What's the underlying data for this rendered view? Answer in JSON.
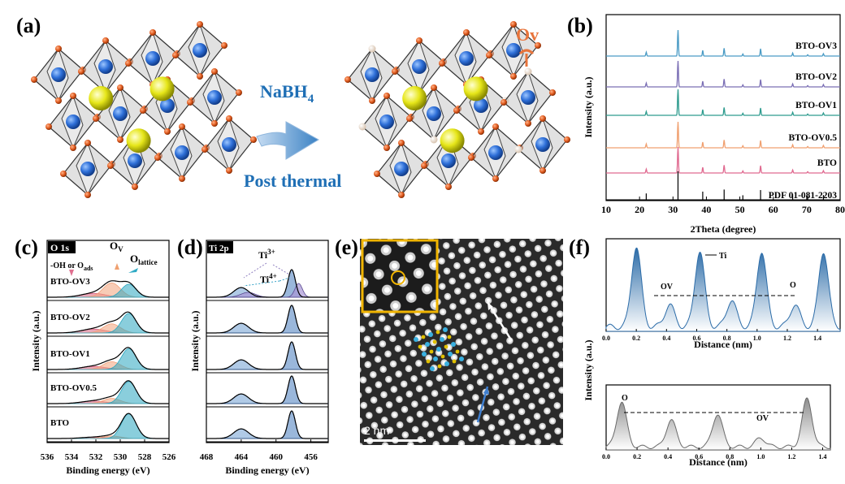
{
  "panel_labels": {
    "a": "(a)",
    "b": "(b)",
    "c": "(c)",
    "d": "(d)",
    "e": "(e)",
    "f": "(f)"
  },
  "panel_a": {
    "reagent": "NaBH",
    "reagent_sub": "4",
    "treatment": "Post thermal",
    "vacancy_label": "Ov",
    "colors": {
      "reagent": "#1f6fb5",
      "vacancy": "#e8743b",
      "oxygen": "#e05a1e",
      "titanium": "#2e6fd8",
      "barium": "#e6e619"
    }
  },
  "chart_data": [
    {
      "type": "line",
      "panel": "b",
      "title": "",
      "xlabel": "2Theta (degree)",
      "ylabel": "Intensity (a.u.)",
      "xlim": [
        10,
        80
      ],
      "xticks": [
        "10",
        "20",
        "30",
        "40",
        "50",
        "60",
        "70",
        "80"
      ],
      "peaks_2theta": [
        22.0,
        31.5,
        38.9,
        45.3,
        50.9,
        56.2,
        65.8,
        70.3,
        75.0
      ],
      "peak_rel_intensity": [
        0.15,
        1.0,
        0.22,
        0.3,
        0.08,
        0.28,
        0.12,
        0.05,
        0.09
      ],
      "series": [
        {
          "name": "BTO-OV3",
          "color": "#4a9bc5"
        },
        {
          "name": "BTO-OV2",
          "color": "#7b6fb5"
        },
        {
          "name": "BTO-OV1",
          "color": "#2f9c8f"
        },
        {
          "name": "BTO-OV0.5",
          "color": "#f0a070"
        },
        {
          "name": "BTO",
          "color": "#e06a90"
        },
        {
          "name": "PDF 01-081-2203",
          "color": "#000000"
        }
      ]
    },
    {
      "type": "line",
      "panel": "c",
      "tag": "O 1s",
      "xlabel": "Binding energy (eV)",
      "ylabel": "Intensity (a.u.)",
      "xlim": [
        536,
        526
      ],
      "xticks": [
        "536",
        "534",
        "532",
        "530",
        "528",
        "526"
      ],
      "annotations": {
        "ov": "O",
        "ov_sub": "V",
        "lattice": "O",
        "lattice_sub": "lattice",
        "oh": "-OH or O",
        "oh_sub": "ads"
      },
      "components_eV": {
        "ads": 532.2,
        "ov": 530.7,
        "lattice": 529.3
      },
      "series": [
        {
          "name": "BTO-OV3",
          "areas": [
            0.15,
            0.55,
            0.5
          ]
        },
        {
          "name": "BTO-OV2",
          "areas": [
            0.15,
            0.35,
            0.75
          ]
        },
        {
          "name": "BTO-OV1",
          "areas": [
            0.12,
            0.3,
            0.8
          ]
        },
        {
          "name": "BTO-OV0.5",
          "areas": [
            0.1,
            0.2,
            0.85
          ]
        },
        {
          "name": "BTO",
          "areas": [
            0.05,
            0.1,
            0.95
          ]
        }
      ]
    },
    {
      "type": "line",
      "panel": "d",
      "tag": "Ti 2p",
      "xlabel": "Binding energy (eV)",
      "ylabel": "Intensity (a.u.)",
      "xlim": [
        468,
        454
      ],
      "xticks": [
        "468",
        "464",
        "460",
        "456"
      ],
      "annotations": {
        "ti3": "Ti",
        "ti3_sup": "3+",
        "ti4": "Ti",
        "ti4_sup": "4+"
      },
      "peaks_eV": [
        464.0,
        458.2
      ]
    },
    {
      "type": "line",
      "panel": "f-top",
      "xlabel": "Distance (nm)",
      "xlim": [
        0.0,
        1.55
      ],
      "xticks": [
        "0.0",
        "0.2",
        "0.4",
        "0.6",
        "0.8",
        "1.0",
        "1.2",
        "1.4"
      ],
      "annotations": [
        "OV",
        "Ti",
        "O"
      ],
      "peaks_nm": [
        0.2,
        0.42,
        0.62,
        0.83,
        1.03,
        1.25,
        1.44
      ],
      "peak_heights": [
        0.9,
        0.25,
        0.85,
        0.3,
        0.85,
        0.25,
        0.85
      ]
    },
    {
      "type": "line",
      "panel": "f-bottom",
      "xlabel": "Distance (nm)",
      "xlim": [
        0.0,
        1.45
      ],
      "xticks": [
        "0.0",
        "0.2",
        "0.4",
        "0.6",
        "0.8",
        "1.0",
        "1.2",
        "1.4"
      ],
      "annotations": [
        "O",
        "OV"
      ],
      "peaks_nm": [
        0.1,
        0.42,
        0.72,
        1.0,
        1.3
      ],
      "peak_heights": [
        0.75,
        0.45,
        0.55,
        0.15,
        0.8
      ]
    }
  ],
  "panel_e": {
    "scale_bar": "2 nm"
  },
  "shared": {
    "intensity_label": "Intensity (a.u.)"
  }
}
